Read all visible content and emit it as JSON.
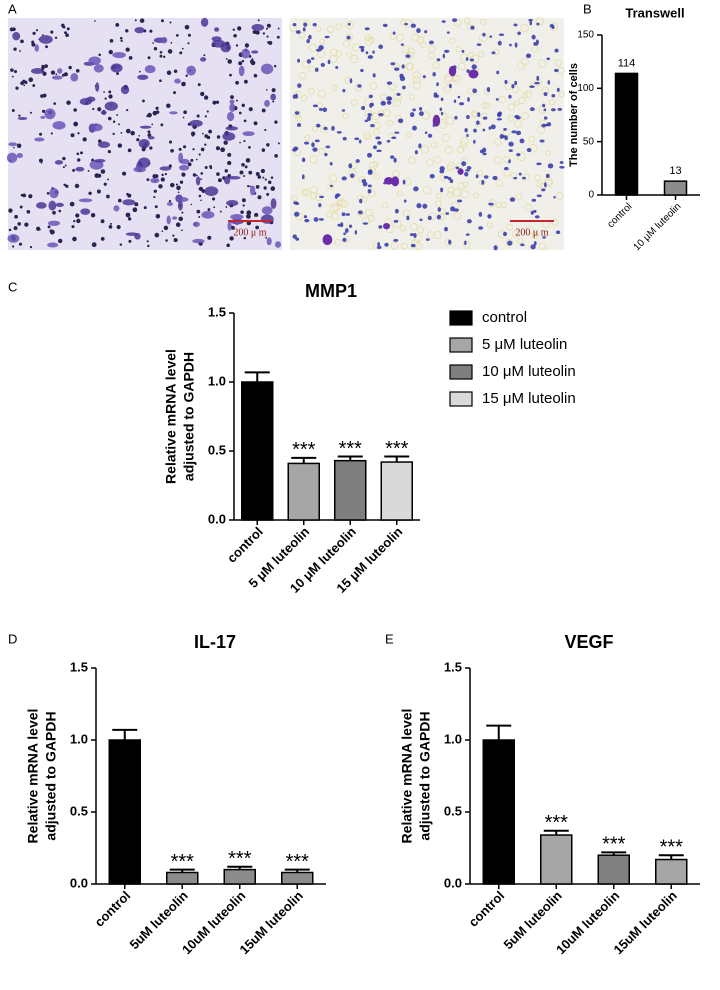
{
  "images": {
    "panel": "A",
    "scale_bars": [
      "200 μ m",
      "200 μ m"
    ]
  },
  "chart_data": [
    {
      "type": "bar",
      "panel": "B",
      "title": "Transwell",
      "ylabel": [
        "The number of cells"
      ],
      "categories": [
        "control",
        "10 μM luteolin"
      ],
      "values": [
        114,
        13
      ],
      "colors": [
        "#000000",
        "#8c8c8c"
      ],
      "data_labels": true,
      "ylim": [
        0,
        150
      ],
      "yticks": [
        0,
        50,
        100,
        150
      ]
    },
    {
      "type": "bar",
      "panel": "C",
      "title": "MMP1",
      "ylabel": [
        "Relative mRNA level",
        "adjusted to GAPDH"
      ],
      "categories": [
        "control",
        "5 μM luteolin",
        "10 μM luteolin",
        "15 μM luteolin"
      ],
      "values": [
        1.0,
        0.41,
        0.43,
        0.42
      ],
      "errors": [
        0.07,
        0.04,
        0.03,
        0.04
      ],
      "annotations": [
        null,
        "***",
        "***",
        "***"
      ],
      "colors": [
        "#000000",
        "#a6a6a6",
        "#7f7f7f",
        "#d9d9d9"
      ],
      "legend": "right",
      "ylim": [
        0,
        1.5
      ],
      "yticks": [
        {
          "value": 0,
          "label": "0.0"
        },
        0.5,
        {
          "value": 1,
          "label": "1.0"
        },
        1.5
      ]
    },
    {
      "type": "bar",
      "panel": "D",
      "title": "IL-17",
      "ylabel": [
        "Relative mRNA level",
        "adjusted to GAPDH"
      ],
      "categories": [
        "control",
        "5uM luteolin",
        "10uM luteolin",
        "15uM luteolin"
      ],
      "values": [
        1.0,
        0.08,
        0.1,
        0.08
      ],
      "errors": [
        0.07,
        0.02,
        0.02,
        0.02
      ],
      "annotations": [
        null,
        "***",
        "***",
        "***"
      ],
      "colors": [
        "#000000",
        "#8c8c8c",
        "#8c8c8c",
        "#8c8c8c"
      ],
      "ylim": [
        0,
        1.5
      ],
      "yticks": [
        {
          "value": 0,
          "label": "0.0"
        },
        0.5,
        {
          "value": 1,
          "label": "1.0"
        },
        1.5
      ]
    },
    {
      "type": "bar",
      "panel": "E",
      "title": "VEGF",
      "ylabel": [
        "Relative mRNA level",
        "adjusted to GAPDH"
      ],
      "categories": [
        "control",
        "5uM luteolin",
        "10uM luteolin",
        "15uM luteolin"
      ],
      "values": [
        1.0,
        0.34,
        0.2,
        0.17
      ],
      "errors": [
        0.1,
        0.03,
        0.02,
        0.03
      ],
      "annotations": [
        null,
        "***",
        "***",
        "***"
      ],
      "colors": [
        "#000000",
        "#a6a6a6",
        "#808080",
        "#a6a6a6"
      ],
      "ylim": [
        0,
        1.5
      ],
      "yticks": [
        {
          "value": 0,
          "label": "0.0"
        },
        0.5,
        {
          "value": 1,
          "label": "1.0"
        },
        1.5
      ]
    }
  ]
}
